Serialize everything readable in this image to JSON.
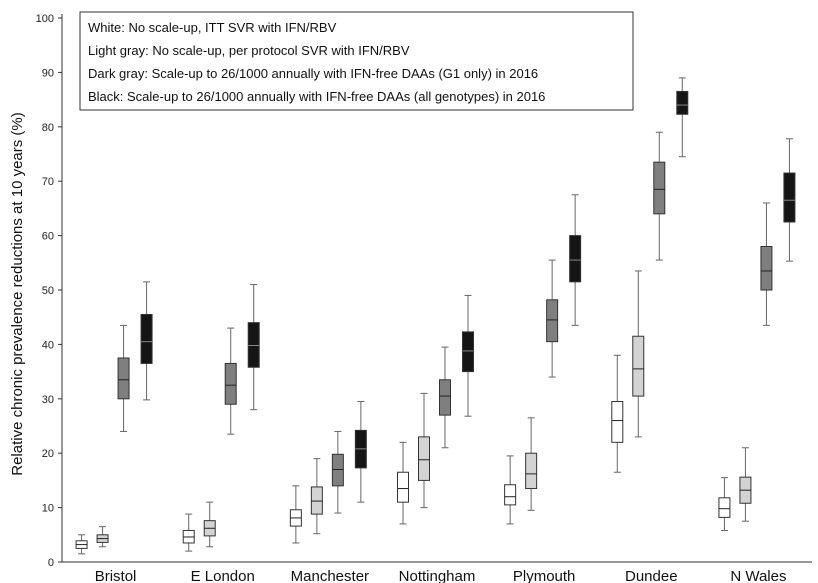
{
  "chart_data": {
    "type": "boxplot",
    "ylabel": "Relative chronic prevalence reductions at 10 years (%)",
    "xlabel": "",
    "ylim": [
      0,
      100
    ],
    "yticks": [
      0,
      10,
      20,
      30,
      40,
      50,
      60,
      70,
      80,
      90,
      100
    ],
    "categories": [
      "Bristol",
      "E London",
      "Manchester",
      "Nottingham",
      "Plymouth",
      "Dundee",
      "N Wales"
    ],
    "legend": {
      "placement": "top-left",
      "entries": [
        "White: No scale-up, ITT SVR with IFN/RBV",
        "Light gray: No scale-up, per protocol SVR with IFN/RBV",
        "Dark gray: Scale-up to 26/1000 annually with IFN-free DAAs (G1 only) in 2016",
        "Black: Scale-up to 26/1000 annually with IFN-free DAAs (all genotypes) in 2016"
      ]
    },
    "colors": [
      "#ffffff",
      "#d3d3d3",
      "#7f7f7f",
      "#151515"
    ],
    "series": [
      {
        "fill": "#ffffff",
        "stats": [
          {
            "min": 1.5,
            "q1": 2.5,
            "median": 3.2,
            "q3": 3.9,
            "max": 5.0
          },
          {
            "min": 2.0,
            "q1": 3.5,
            "median": 4.6,
            "q3": 5.8,
            "max": 8.8
          },
          {
            "min": 3.5,
            "q1": 6.6,
            "median": 8.1,
            "q3": 9.6,
            "max": 14.0
          },
          {
            "min": 7.0,
            "q1": 11.0,
            "median": 13.5,
            "q3": 16.5,
            "max": 22.0
          },
          {
            "min": 7.0,
            "q1": 10.5,
            "median": 12.0,
            "q3": 14.2,
            "max": 19.5
          },
          {
            "min": 16.5,
            "q1": 22.0,
            "median": 26.0,
            "q3": 29.5,
            "max": 38.0
          },
          {
            "min": 5.8,
            "q1": 8.2,
            "median": 9.8,
            "q3": 11.8,
            "max": 15.5
          }
        ]
      },
      {
        "fill": "#d3d3d3",
        "stats": [
          {
            "min": 2.8,
            "q1": 3.6,
            "median": 4.3,
            "q3": 5.0,
            "max": 6.5
          },
          {
            "min": 2.8,
            "q1": 4.8,
            "median": 6.2,
            "q3": 7.6,
            "max": 11.0
          },
          {
            "min": 5.2,
            "q1": 8.8,
            "median": 11.2,
            "q3": 13.8,
            "max": 19.0
          },
          {
            "min": 10.0,
            "q1": 15.0,
            "median": 18.8,
            "q3": 23.0,
            "max": 31.0
          },
          {
            "min": 9.5,
            "q1": 13.5,
            "median": 16.2,
            "q3": 20.0,
            "max": 26.5
          },
          {
            "min": 23.0,
            "q1": 30.5,
            "median": 35.5,
            "q3": 41.5,
            "max": 53.5
          },
          {
            "min": 7.5,
            "q1": 10.8,
            "median": 13.2,
            "q3": 15.6,
            "max": 21.0
          }
        ]
      },
      {
        "fill": "#7f7f7f",
        "stats": [
          {
            "min": 24.0,
            "q1": 30.0,
            "median": 33.5,
            "q3": 37.5,
            "max": 43.5
          },
          {
            "min": 23.5,
            "q1": 29.0,
            "median": 32.5,
            "q3": 36.5,
            "max": 43.0
          },
          {
            "min": 9.0,
            "q1": 14.0,
            "median": 17.0,
            "q3": 19.8,
            "max": 24.0
          },
          {
            "min": 21.0,
            "q1": 27.0,
            "median": 30.5,
            "q3": 33.5,
            "max": 39.5
          },
          {
            "min": 34.0,
            "q1": 40.5,
            "median": 44.5,
            "q3": 48.2,
            "max": 55.5
          },
          {
            "min": 55.5,
            "q1": 64.0,
            "median": 68.5,
            "q3": 73.5,
            "max": 79.0
          },
          {
            "min": 43.5,
            "q1": 50.0,
            "median": 53.5,
            "q3": 58.0,
            "max": 66.0
          }
        ]
      },
      {
        "fill": "#151515",
        "stats": [
          {
            "min": 29.8,
            "q1": 36.5,
            "median": 40.5,
            "q3": 45.5,
            "max": 51.5
          },
          {
            "min": 28.0,
            "q1": 35.8,
            "median": 39.8,
            "q3": 44.0,
            "max": 51.0
          },
          {
            "min": 11.0,
            "q1": 17.3,
            "median": 20.8,
            "q3": 24.2,
            "max": 29.5
          },
          {
            "min": 26.8,
            "q1": 35.0,
            "median": 38.8,
            "q3": 42.3,
            "max": 49.0
          },
          {
            "min": 43.5,
            "q1": 51.5,
            "median": 55.5,
            "q3": 60.0,
            "max": 67.5
          },
          {
            "min": 74.5,
            "q1": 82.3,
            "median": 84.0,
            "q3": 86.5,
            "max": 89.0
          },
          {
            "min": 55.3,
            "q1": 62.5,
            "median": 66.5,
            "q3": 71.5,
            "max": 77.8
          }
        ]
      }
    ]
  }
}
